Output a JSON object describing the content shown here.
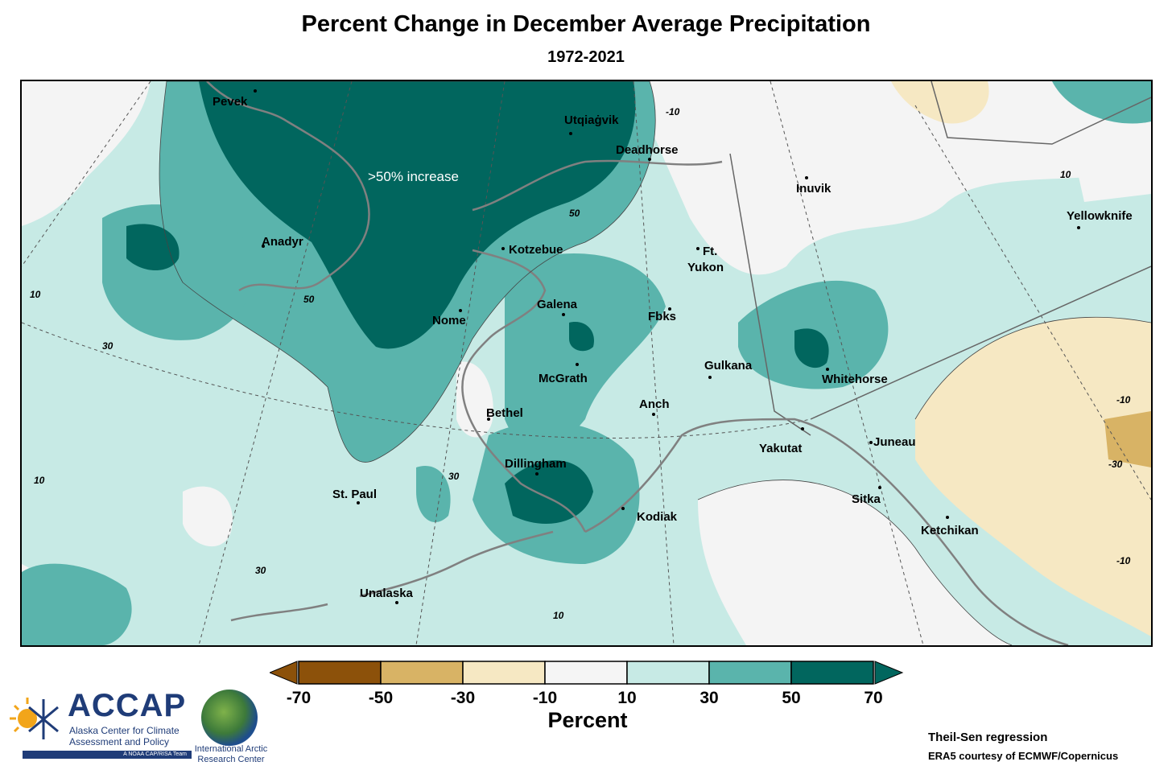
{
  "header": {
    "title": "Percent Change in December Average Precipitation",
    "subtitle": "1972-2021"
  },
  "map": {
    "callout": ">50% increase",
    "cities": [
      {
        "name": "Pevek"
      },
      {
        "name": "Utqiaġvik"
      },
      {
        "name": "Deadhorse"
      },
      {
        "name": "Inuvik"
      },
      {
        "name": "Yellowknife"
      },
      {
        "name": "Anadyr"
      },
      {
        "name": "Kotzebue"
      },
      {
        "name": "Ft."
      },
      {
        "name": "Yukon"
      },
      {
        "name": "Galena"
      },
      {
        "name": "Nome"
      },
      {
        "name": "Fbks"
      },
      {
        "name": "McGrath"
      },
      {
        "name": "Gulkana"
      },
      {
        "name": "Whitehorse"
      },
      {
        "name": "Bethel"
      },
      {
        "name": "Anch"
      },
      {
        "name": "Yakutat"
      },
      {
        "name": "Juneau"
      },
      {
        "name": "Dillingham"
      },
      {
        "name": "St. Paul"
      },
      {
        "name": "Sitka"
      },
      {
        "name": "Kodiak"
      },
      {
        "name": "Ketchikan"
      },
      {
        "name": "Unalaska"
      }
    ],
    "contour_labels": [
      "10",
      "-10",
      "30",
      "50",
      "10",
      "-10",
      "-30",
      "-10",
      "10",
      "30",
      "50",
      "10",
      "30"
    ]
  },
  "legend": {
    "label": "Percent",
    "ticks": [
      "-70",
      "-50",
      "-30",
      "-10",
      "10",
      "30",
      "50",
      "70"
    ],
    "colors": [
      "#8c510a",
      "#d8b365",
      "#f6e8c3",
      "#f5f5f5",
      "#c7eae5",
      "#5ab4ac",
      "#01665e"
    ],
    "extend_low_color": "#8c510a",
    "extend_high_color": "#01665e"
  },
  "branding": {
    "logo_name": "ACCAP",
    "logo_line1": "Alaska Center for Climate",
    "logo_line2": "Assessment and Policy",
    "logo_tag": "A NOAA CAP/RISA Team",
    "iarc_line1": "International Arctic",
    "iarc_line2": "Research Center"
  },
  "credits": {
    "line1": "Theil-Sen regression",
    "line2": "ERA5 courtesy of ECMWF/Copernicus"
  }
}
